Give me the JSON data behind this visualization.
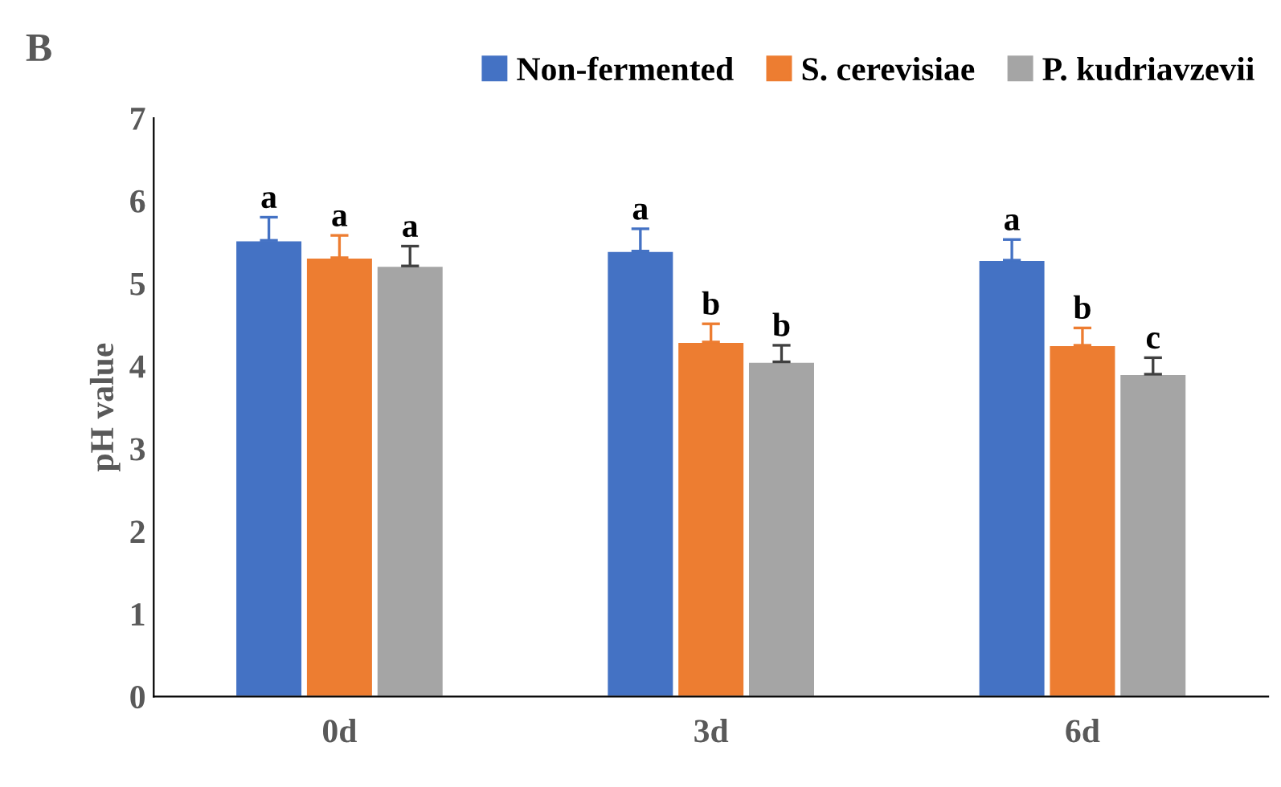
{
  "chart_data": {
    "type": "bar",
    "ylabel": "pH value",
    "categories": [
      "0d",
      "3d",
      "6d"
    ],
    "series": [
      {
        "name": "Non-fermented",
        "color": "#4472c4",
        "values": [
          5.52,
          5.39,
          5.28
        ],
        "errors": [
          [
            5.52,
            5.8
          ],
          [
            5.39,
            5.66
          ],
          [
            5.28,
            5.53
          ]
        ],
        "value_labels": [
          "a",
          "a",
          "a"
        ]
      },
      {
        "name": "S. cerevisiae",
        "color": "#ed7d31",
        "values": [
          5.31,
          4.29,
          4.25
        ],
        "errors": [
          [
            5.31,
            5.58
          ],
          [
            4.29,
            4.51
          ],
          [
            4.25,
            4.46
          ]
        ],
        "value_labels": [
          "a",
          "b",
          "b"
        ]
      },
      {
        "name": "P. kudriavzevii",
        "color": "#a5a5a5",
        "values": [
          5.21,
          4.05,
          3.9
        ],
        "errors": [
          [
            5.21,
            5.45
          ],
          [
            4.05,
            4.25
          ],
          [
            3.9,
            4.1
          ]
        ],
        "value_labels": [
          "a",
          "b",
          "c"
        ]
      }
    ],
    "ylim": [
      0,
      7
    ],
    "yticks": [
      0,
      1,
      2,
      3,
      4,
      5,
      6,
      7
    ],
    "grid": false,
    "legend": "top right",
    "annotations": [
      "B"
    ]
  }
}
